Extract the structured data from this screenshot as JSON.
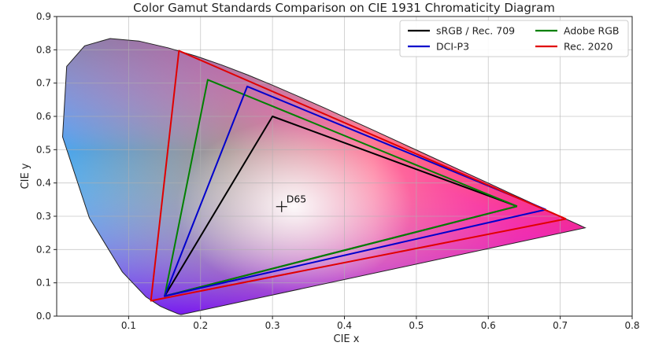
{
  "chart_data": {
    "type": "line",
    "title": "Color Gamut Standards Comparison on CIE 1931 Chromaticity Diagram",
    "xlabel": "CIE x",
    "ylabel": "CIE y",
    "xlim": [
      0.0,
      0.8
    ],
    "ylim": [
      0.0,
      0.9
    ],
    "xticks": [
      0.1,
      0.2,
      0.3,
      0.4,
      0.5,
      0.6,
      0.7,
      0.8
    ],
    "yticks": [
      0.0,
      0.1,
      0.2,
      0.3,
      0.4,
      0.5,
      0.6,
      0.7,
      0.8,
      0.9
    ],
    "grid": true,
    "legend_position": "top-right",
    "spectral_locus": {
      "x": [
        0.1741,
        0.174,
        0.1738,
        0.1733,
        0.1726,
        0.1714,
        0.1689,
        0.1644,
        0.1566,
        0.144,
        0.1241,
        0.0913,
        0.0454,
        0.0082,
        0.0139,
        0.0389,
        0.0743,
        0.1142,
        0.1547,
        0.1929,
        0.2296,
        0.2658,
        0.3016,
        0.3373,
        0.3731,
        0.4087,
        0.4441,
        0.4788,
        0.5125,
        0.5448,
        0.5752,
        0.6029,
        0.627,
        0.6482,
        0.6658,
        0.6801,
        0.6915,
        0.7006,
        0.7079,
        0.714,
        0.719,
        0.723,
        0.726,
        0.7283,
        0.73,
        0.7347
      ],
      "y": [
        0.005,
        0.005,
        0.0049,
        0.0048,
        0.0048,
        0.0051,
        0.0069,
        0.0109,
        0.0177,
        0.0297,
        0.0578,
        0.1327,
        0.295,
        0.5384,
        0.7502,
        0.812,
        0.8338,
        0.8262,
        0.8059,
        0.7816,
        0.7543,
        0.7243,
        0.6923,
        0.6589,
        0.6245,
        0.5896,
        0.5547,
        0.5202,
        0.4866,
        0.4544,
        0.4242,
        0.3965,
        0.3725,
        0.3514,
        0.334,
        0.3197,
        0.3083,
        0.2993,
        0.292,
        0.2859,
        0.2809,
        0.277,
        0.274,
        0.2717,
        0.27,
        0.2653
      ]
    },
    "series": [
      {
        "name": "sRGB / Rec. 709",
        "color": "#000000",
        "x": [
          0.64,
          0.3,
          0.15,
          0.64
        ],
        "y": [
          0.33,
          0.6,
          0.06,
          0.33
        ]
      },
      {
        "name": "Adobe RGB",
        "color": "#008000",
        "x": [
          0.64,
          0.21,
          0.15,
          0.64
        ],
        "y": [
          0.33,
          0.71,
          0.06,
          0.33
        ]
      },
      {
        "name": "DCI-P3",
        "color": "#0000cc",
        "x": [
          0.68,
          0.265,
          0.15,
          0.68
        ],
        "y": [
          0.32,
          0.69,
          0.06,
          0.32
        ]
      },
      {
        "name": "Rec. 2020",
        "color": "#e00000",
        "x": [
          0.708,
          0.17,
          0.131,
          0.708
        ],
        "y": [
          0.292,
          0.797,
          0.046,
          0.292
        ]
      }
    ],
    "annotations": [
      {
        "label": "D65",
        "x": 0.3127,
        "y": 0.329,
        "marker": "+"
      }
    ]
  }
}
